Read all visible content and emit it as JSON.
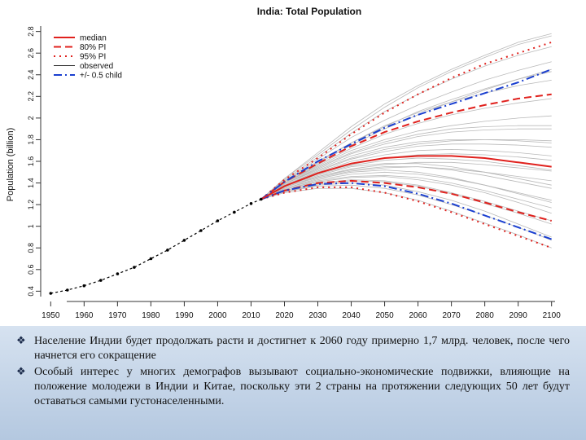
{
  "chart_data": {
    "type": "line",
    "title": "India: Total Population",
    "ylabel": "Population (billion)",
    "xlabel": "",
    "xlim": [
      1947,
      2103
    ],
    "ylim": [
      0.35,
      2.85
    ],
    "x_ticks": [
      1950,
      1960,
      1970,
      1980,
      1990,
      2000,
      2010,
      2020,
      2030,
      2040,
      2050,
      2060,
      2070,
      2080,
      2090,
      2100
    ],
    "y_ticks": [
      0.4,
      0.6,
      0.8,
      1,
      1.2,
      1.4,
      1.6,
      1.8,
      2,
      2.2,
      2.4,
      2.6,
      2.8
    ],
    "grid": false,
    "legend_position": "top-left",
    "legend": [
      {
        "label": "median",
        "color": "#e0211d",
        "style": "solid"
      },
      {
        "label": "80% PI",
        "color": "#e0211d",
        "style": "dashed"
      },
      {
        "label": "95% PI",
        "color": "#e0211d",
        "style": "dotted"
      },
      {
        "label": "observed",
        "color": "#000000",
        "style": "points"
      },
      {
        "label": "+/- 0.5 child",
        "color": "#1a3fd0",
        "style": "dashdot"
      }
    ],
    "observed": {
      "x": [
        1950,
        1955,
        1960,
        1965,
        1970,
        1975,
        1980,
        1985,
        1990,
        1995,
        2000,
        2005,
        2010,
        2013
      ],
      "y": [
        0.38,
        0.41,
        0.45,
        0.5,
        0.56,
        0.62,
        0.7,
        0.78,
        0.87,
        0.96,
        1.05,
        1.13,
        1.21,
        1.25
      ]
    },
    "series": [
      {
        "name": "median",
        "x": [
          2013,
          2020,
          2030,
          2040,
          2050,
          2060,
          2070,
          2080,
          2090,
          2100
        ],
        "y": [
          1.25,
          1.37,
          1.49,
          1.58,
          1.63,
          1.65,
          1.65,
          1.63,
          1.59,
          1.55
        ]
      },
      {
        "name": "80% PI",
        "x": [
          2013,
          2020,
          2030,
          2040,
          2050,
          2060,
          2070,
          2080,
          2090,
          2100
        ],
        "y": [
          1.25,
          1.41,
          1.58,
          1.74,
          1.87,
          1.97,
          2.05,
          2.12,
          2.18,
          2.22
        ]
      },
      {
        "name": "80% PI",
        "x": [
          2013,
          2020,
          2030,
          2040,
          2050,
          2060,
          2070,
          2080,
          2090,
          2100
        ],
        "y": [
          1.25,
          1.33,
          1.4,
          1.42,
          1.4,
          1.36,
          1.3,
          1.22,
          1.13,
          1.05
        ]
      },
      {
        "name": "95% PI",
        "x": [
          2013,
          2020,
          2030,
          2040,
          2050,
          2060,
          2070,
          2080,
          2090,
          2100
        ],
        "y": [
          1.25,
          1.43,
          1.63,
          1.85,
          2.05,
          2.22,
          2.37,
          2.5,
          2.6,
          2.7
        ]
      },
      {
        "name": "95% PI",
        "x": [
          2013,
          2020,
          2030,
          2040,
          2050,
          2060,
          2070,
          2080,
          2090,
          2100
        ],
        "y": [
          1.25,
          1.31,
          1.36,
          1.36,
          1.31,
          1.23,
          1.13,
          1.02,
          0.91,
          0.8
        ]
      },
      {
        "name": "+/- 0.5 child",
        "x": [
          2013,
          2020,
          2030,
          2040,
          2050,
          2060,
          2070,
          2080,
          2090,
          2100
        ],
        "y": [
          1.25,
          1.41,
          1.6,
          1.76,
          1.91,
          2.03,
          2.13,
          2.23,
          2.33,
          2.45
        ]
      },
      {
        "name": "+/- 0.5 child",
        "x": [
          2013,
          2020,
          2030,
          2040,
          2050,
          2060,
          2070,
          2080,
          2090,
          2100
        ],
        "y": [
          1.25,
          1.33,
          1.39,
          1.4,
          1.37,
          1.3,
          1.21,
          1.1,
          0.99,
          0.88
        ]
      }
    ],
    "trajectories": [
      {
        "y": [
          1.25,
          1.32,
          1.38,
          1.4,
          1.38,
          1.32,
          1.24,
          1.14,
          1.02,
          0.9
        ]
      },
      {
        "y": [
          1.25,
          1.44,
          1.68,
          1.92,
          2.13,
          2.3,
          2.45,
          2.58,
          2.7,
          2.78
        ]
      },
      {
        "y": [
          1.25,
          1.37,
          1.47,
          1.55,
          1.58,
          1.58,
          1.55,
          1.5,
          1.44,
          1.38
        ]
      },
      {
        "y": [
          1.25,
          1.4,
          1.56,
          1.7,
          1.8,
          1.88,
          1.93,
          1.97,
          2.0,
          2.02
        ]
      },
      {
        "y": [
          1.25,
          1.35,
          1.44,
          1.5,
          1.52,
          1.5,
          1.45,
          1.38,
          1.3,
          1.22
        ]
      },
      {
        "y": [
          1.25,
          1.42,
          1.62,
          1.82,
          1.98,
          2.12,
          2.24,
          2.35,
          2.44,
          2.52
        ]
      },
      {
        "y": [
          1.25,
          1.33,
          1.4,
          1.43,
          1.42,
          1.38,
          1.31,
          1.23,
          1.14,
          1.05
        ]
      },
      {
        "y": [
          1.25,
          1.39,
          1.53,
          1.65,
          1.73,
          1.78,
          1.8,
          1.8,
          1.79,
          1.77
        ]
      },
      {
        "y": [
          1.25,
          1.36,
          1.46,
          1.53,
          1.57,
          1.59,
          1.59,
          1.57,
          1.54,
          1.51
        ]
      },
      {
        "y": [
          1.25,
          1.41,
          1.58,
          1.75,
          1.9,
          2.03,
          2.15,
          2.26,
          2.36,
          2.45
        ]
      },
      {
        "y": [
          1.25,
          1.31,
          1.35,
          1.35,
          1.31,
          1.24,
          1.14,
          1.03,
          0.92,
          0.8
        ]
      },
      {
        "y": [
          1.25,
          1.38,
          1.5,
          1.6,
          1.66,
          1.7,
          1.71,
          1.7,
          1.68,
          1.65
        ]
      },
      {
        "y": [
          1.25,
          1.43,
          1.64,
          1.86,
          2.06,
          2.22,
          2.36,
          2.48,
          2.58,
          2.66
        ]
      },
      {
        "y": [
          1.25,
          1.34,
          1.42,
          1.46,
          1.47,
          1.45,
          1.4,
          1.33,
          1.25,
          1.17
        ]
      },
      {
        "y": [
          1.25,
          1.4,
          1.55,
          1.68,
          1.78,
          1.85,
          1.9,
          1.92,
          1.93,
          1.93
        ]
      },
      {
        "y": [
          1.25,
          1.37,
          1.48,
          1.56,
          1.61,
          1.63,
          1.62,
          1.6,
          1.56,
          1.52
        ]
      },
      {
        "y": [
          1.25,
          1.42,
          1.6,
          1.77,
          1.93,
          2.05,
          2.15,
          2.23,
          2.3,
          2.35
        ]
      },
      {
        "y": [
          1.25,
          1.33,
          1.39,
          1.42,
          1.41,
          1.37,
          1.3,
          1.21,
          1.12,
          1.02
        ]
      },
      {
        "y": [
          1.25,
          1.39,
          1.52,
          1.63,
          1.71,
          1.76,
          1.79,
          1.8,
          1.8,
          1.79
        ]
      },
      {
        "y": [
          1.25,
          1.36,
          1.45,
          1.51,
          1.54,
          1.55,
          1.53,
          1.5,
          1.46,
          1.42
        ]
      },
      {
        "y": [
          1.25,
          1.44,
          1.66,
          1.89,
          2.1,
          2.28,
          2.43,
          2.56,
          2.68,
          2.76
        ]
      },
      {
        "y": [
          1.25,
          1.34,
          1.41,
          1.45,
          1.46,
          1.43,
          1.38,
          1.31,
          1.22,
          1.12
        ]
      },
      {
        "y": [
          1.25,
          1.38,
          1.51,
          1.62,
          1.69,
          1.74,
          1.76,
          1.76,
          1.75,
          1.73
        ]
      },
      {
        "y": [
          1.25,
          1.4,
          1.57,
          1.72,
          1.85,
          1.95,
          2.03,
          2.09,
          2.14,
          2.18
        ]
      },
      {
        "y": [
          1.25,
          1.35,
          1.43,
          1.48,
          1.5,
          1.48,
          1.44,
          1.38,
          1.31,
          1.24
        ]
      },
      {
        "y": [
          1.25,
          1.41,
          1.59,
          1.77,
          1.92,
          2.06,
          2.17,
          2.27,
          2.36,
          2.43
        ]
      },
      {
        "y": [
          1.25,
          1.32,
          1.37,
          1.38,
          1.35,
          1.29,
          1.2,
          1.1,
          0.99,
          0.87
        ]
      },
      {
        "y": [
          1.25,
          1.39,
          1.54,
          1.67,
          1.76,
          1.83,
          1.87,
          1.89,
          1.9,
          1.9
        ]
      },
      {
        "y": [
          1.25,
          1.37,
          1.49,
          1.57,
          1.63,
          1.66,
          1.67,
          1.66,
          1.64,
          1.61
        ]
      },
      {
        "y": [
          1.25,
          1.36,
          1.46,
          1.52,
          1.55,
          1.55,
          1.52,
          1.47,
          1.41,
          1.35
        ]
      }
    ]
  },
  "notes": {
    "bullets": [
      "Население Индии будет продолжать расти и достигнет к 2060 году примерно 1,7 млрд. человек, после чего начнется его сокращение",
      "Особый интерес у многих демографов вызывают социально-экономические подвижки, влияющие на положение молодежи в Индии и Китае, поскольку эти 2 страны на протяжении следующих 50 лет будут оставаться самыми густонаселенными."
    ]
  }
}
